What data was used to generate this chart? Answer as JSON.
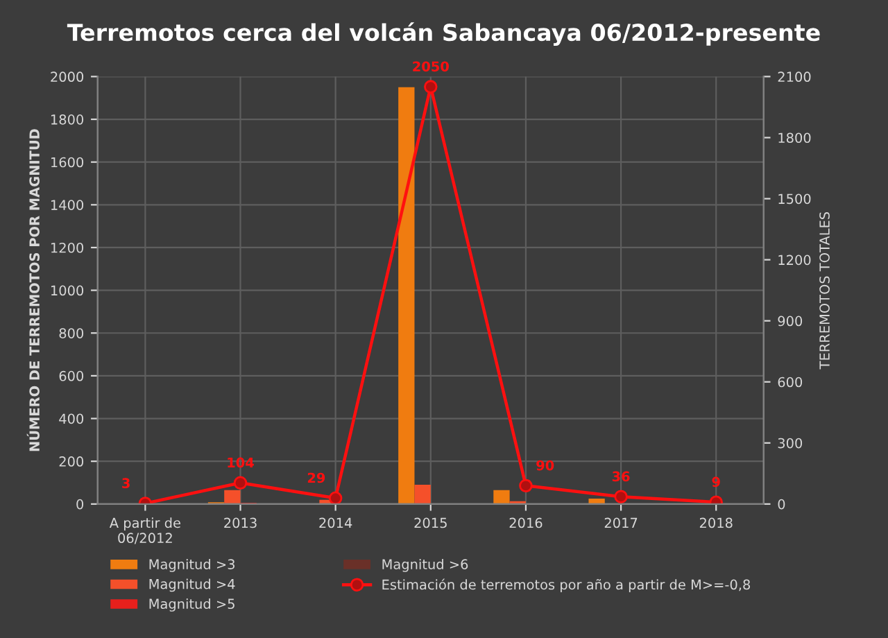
{
  "chart_data": {
    "type": "bar",
    "title": "Terremotos cerca del volcán Sabancaya 06/2012-presente",
    "categories": [
      "A partir de\n06/2012",
      "2013",
      "2014",
      "2015",
      "2016",
      "2017",
      "2018"
    ],
    "ylabel": "NÚMERO DE TERREMOTOS POR MAGNITUD",
    "y2label": "TERREMOTOS TOTALES",
    "ylim": [
      0,
      2000
    ],
    "yticks": [
      0,
      200,
      400,
      600,
      800,
      1000,
      1200,
      1400,
      1600,
      1800,
      2000
    ],
    "y2lim": [
      0,
      2100
    ],
    "y2ticks": [
      0,
      300,
      600,
      900,
      1200,
      1500,
      1800,
      2100
    ],
    "grid": true,
    "legend": "bottom",
    "series": [
      {
        "name": "Magnitud >3",
        "color": "#f07c10",
        "values": [
          0,
          8,
          0,
          1950,
          65,
          25,
          0
        ]
      },
      {
        "name": "Magnitud >4",
        "color": "#f5502a",
        "values": [
          0,
          65,
          20,
          90,
          13,
          3,
          0
        ]
      },
      {
        "name": "Magnitud >5",
        "color": "#e8201c",
        "values": [
          0,
          6,
          1,
          0,
          null,
          0,
          0
        ]
      },
      {
        "name": "Magnitud >6",
        "color": "#6a3028",
        "values": [
          0,
          null,
          0,
          0,
          0,
          0,
          0
        ]
      },
      {
        "name": "Estimación de terremotos por año a partir de M>=-0,8",
        "type": "line",
        "axis": "y2",
        "color": "#ff1010",
        "marker": "circle",
        "data_labels": true,
        "values": [
          3,
          104,
          29,
          2050,
          90,
          36,
          9
        ]
      }
    ]
  }
}
